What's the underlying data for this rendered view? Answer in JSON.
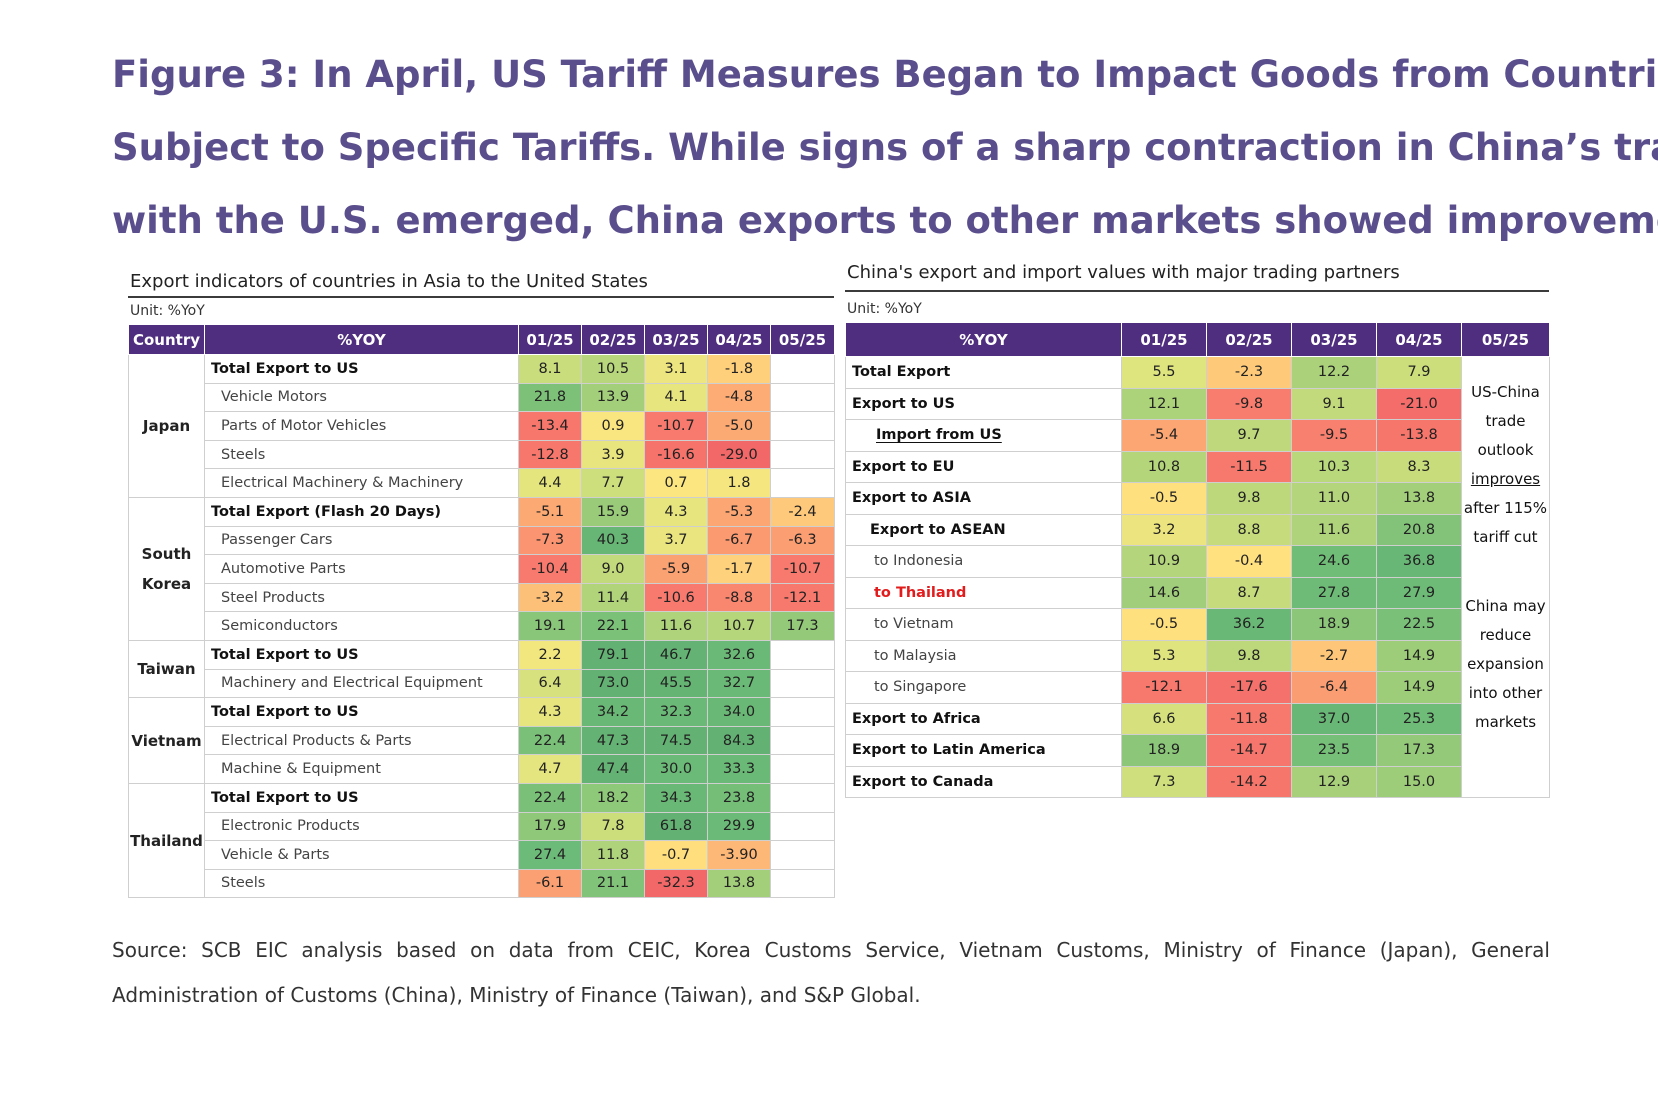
{
  "title_lines": [
    "Figure 3: In April, US Tariff Measures Began to Impact Goods from Countries",
    "Subject to Specific Tariffs. While signs of a sharp contraction in China’s trade",
    "with the U.S. emerged, China exports to other markets showed improvement."
  ],
  "chart_data": [
    {
      "type": "table",
      "title": "Export indicators of countries in Asia to the United States",
      "unit": "Unit: %YoY",
      "headers": [
        "Country",
        "%YOY",
        "01/25",
        "02/25",
        "03/25",
        "04/25",
        "05/25"
      ],
      "groups": [
        {
          "country": "Japan",
          "rows": [
            {
              "label": "Total Export to US",
              "bold": true,
              "values": [
                "8.1",
                "10.5",
                "3.1",
                "-1.8",
                ""
              ]
            },
            {
              "label": "Vehicle Motors",
              "bold": false,
              "values": [
                "21.8",
                "13.9",
                "4.1",
                "-4.8",
                ""
              ]
            },
            {
              "label": "Parts of Motor Vehicles",
              "bold": false,
              "values": [
                "-13.4",
                "0.9",
                "-10.7",
                "-5.0",
                ""
              ]
            },
            {
              "label": "Steels",
              "bold": false,
              "values": [
                "-12.8",
                "3.9",
                "-16.6",
                "-29.0",
                ""
              ]
            },
            {
              "label": "Electrical Machinery & Machinery",
              "bold": false,
              "values": [
                "4.4",
                "7.7",
                "0.7",
                "1.8",
                ""
              ]
            }
          ]
        },
        {
          "country": "South Korea",
          "rows": [
            {
              "label": "Total Export (Flash 20 Days)",
              "bold": true,
              "values": [
                "-5.1",
                "15.9",
                "4.3",
                "-5.3",
                "-2.4"
              ]
            },
            {
              "label": "Passenger Cars",
              "bold": false,
              "values": [
                "-7.3",
                "40.3",
                "3.7",
                "-6.7",
                "-6.3"
              ]
            },
            {
              "label": "Automotive Parts",
              "bold": false,
              "values": [
                "-10.4",
                "9.0",
                "-5.9",
                "-1.7",
                "-10.7"
              ]
            },
            {
              "label": "Steel Products",
              "bold": false,
              "values": [
                "-3.2",
                "11.4",
                "-10.6",
                "-8.8",
                "-12.1"
              ]
            },
            {
              "label": "Semiconductors",
              "bold": false,
              "values": [
                "19.1",
                "22.1",
                "11.6",
                "10.7",
                "17.3"
              ]
            }
          ]
        },
        {
          "country": "Taiwan",
          "rows": [
            {
              "label": "Total Export to US",
              "bold": true,
              "values": [
                "2.2",
                "79.1",
                "46.7",
                "32.6",
                ""
              ]
            },
            {
              "label": "Machinery and Electrical Equipment",
              "bold": false,
              "values": [
                "6.4",
                "73.0",
                "45.5",
                "32.7",
                ""
              ]
            }
          ]
        },
        {
          "country": "Vietnam",
          "rows": [
            {
              "label": "Total Export to US",
              "bold": true,
              "values": [
                "4.3",
                "34.2",
                "32.3",
                "34.0",
                ""
              ]
            },
            {
              "label": "Electrical Products & Parts",
              "bold": false,
              "values": [
                "22.4",
                "47.3",
                "74.5",
                "84.3",
                ""
              ]
            },
            {
              "label": "Machine & Equipment",
              "bold": false,
              "values": [
                "4.7",
                "47.4",
                "30.0",
                "33.3",
                ""
              ]
            }
          ]
        },
        {
          "country": "Thailand",
          "rows": [
            {
              "label": "Total Export to US",
              "bold": true,
              "values": [
                "22.4",
                "18.2",
                "34.3",
                "23.8",
                ""
              ]
            },
            {
              "label": "Electronic Products",
              "bold": false,
              "values": [
                "17.9",
                "7.8",
                "61.8",
                "29.9",
                ""
              ]
            },
            {
              "label": "Vehicle & Parts",
              "bold": false,
              "values": [
                "27.4",
                "11.8",
                "-0.7",
                "-3.90",
                ""
              ]
            },
            {
              "label": "Steels",
              "bold": false,
              "values": [
                "-6.1",
                "21.1",
                "-32.3",
                "13.8",
                ""
              ]
            }
          ]
        }
      ]
    },
    {
      "type": "table",
      "title": "China's export and import values with major trading partners",
      "unit": "Unit: %YoY",
      "headers": [
        "%YOY",
        "01/25",
        "02/25",
        "03/25",
        "04/25",
        "05/25"
      ],
      "rows": [
        {
          "label": "Total Export",
          "style": "bold",
          "values": [
            "5.5",
            "-2.3",
            "12.2",
            "7.9"
          ]
        },
        {
          "label": "Export to US",
          "style": "bold",
          "values": [
            "12.1",
            "-9.8",
            "9.1",
            "-21.0"
          ]
        },
        {
          "label": "Import from US",
          "style": "bold-underline",
          "values": [
            "-5.4",
            "9.7",
            "-9.5",
            "-13.8"
          ]
        },
        {
          "label": "Export to EU",
          "style": "bold",
          "values": [
            "10.8",
            "-11.5",
            "10.3",
            "8.3"
          ]
        },
        {
          "label": "Export to ASIA",
          "style": "bold",
          "values": [
            "-0.5",
            "9.8",
            "11.0",
            "13.8"
          ]
        },
        {
          "label": "Export to ASEAN",
          "style": "bold-indent",
          "values": [
            "3.2",
            "8.8",
            "11.6",
            "20.8"
          ]
        },
        {
          "label": "to Indonesia",
          "style": "plain",
          "values": [
            "10.9",
            "-0.4",
            "24.6",
            "36.8"
          ]
        },
        {
          "label": "to Thailand",
          "style": "red",
          "values": [
            "14.6",
            "8.7",
            "27.8",
            "27.9"
          ]
        },
        {
          "label": "to Vietnam",
          "style": "plain",
          "values": [
            "-0.5",
            "36.2",
            "18.9",
            "22.5"
          ]
        },
        {
          "label": "to Malaysia",
          "style": "plain",
          "values": [
            "5.3",
            "9.8",
            "-2.7",
            "14.9"
          ]
        },
        {
          "label": "to Singapore",
          "style": "plain",
          "values": [
            "-12.1",
            "-17.6",
            "-6.4",
            "14.9"
          ]
        },
        {
          "label": "Export to Africa",
          "style": "bold",
          "values": [
            "6.6",
            "-11.8",
            "37.0",
            "25.3"
          ]
        },
        {
          "label": "Export to Latin America",
          "style": "bold",
          "values": [
            "18.9",
            "-14.7",
            "23.5",
            "17.3"
          ]
        },
        {
          "label": "Export to Canada",
          "style": "bold",
          "values": [
            "7.3",
            "-14.2",
            "12.9",
            "15.0"
          ]
        }
      ],
      "notes": {
        "note1_pre": "US-China trade outlook",
        "note1_underlined": "improves",
        "note1_post": "after 115% tariff cut",
        "note2": "China may reduce expansion into other markets"
      }
    }
  ],
  "source": "Source: SCB EIC analysis based on data from CEIC, Korea Customs Service, Vietnam Customs, Ministry of Finance (Japan), General Administration of Customs (China), Ministry of Finance (Taiwan), and S&P Global."
}
